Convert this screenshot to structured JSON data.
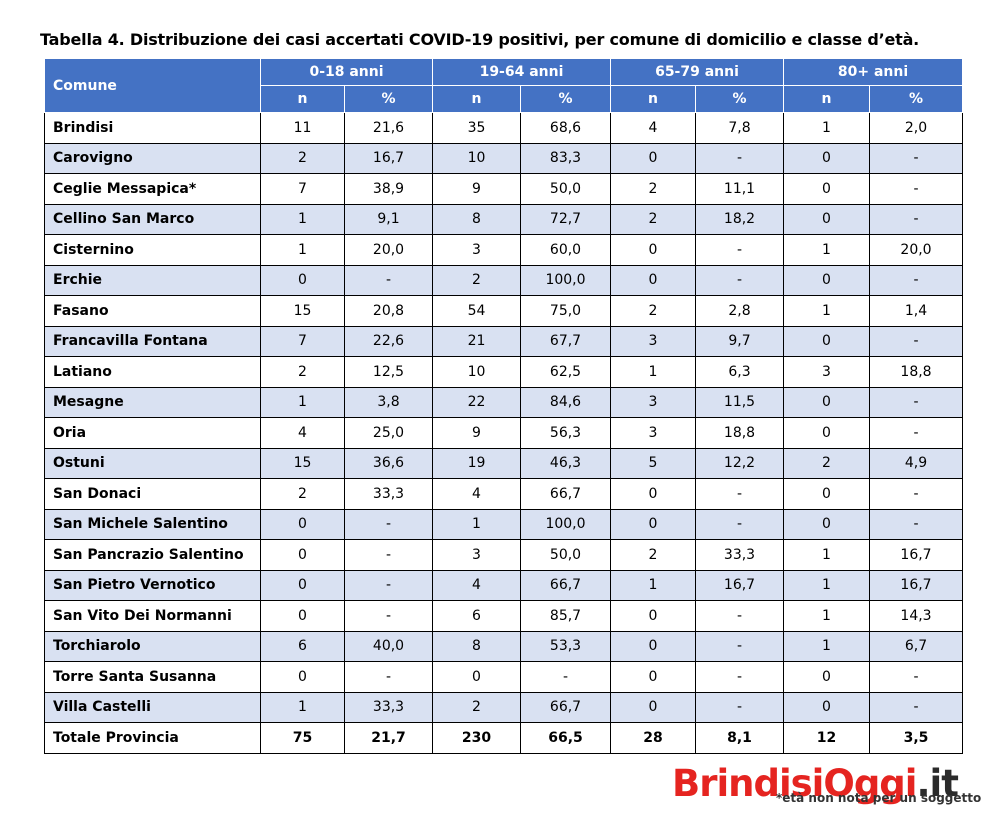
{
  "caption": "Tabella 4. Distribuzione dei casi accertati COVID-19 positivi, per comune di domicilio e classe d’età.",
  "header": {
    "comune": "Comune",
    "groups": [
      "0-18 anni",
      "19-64 anni",
      "65-79 anni",
      "80+ anni"
    ],
    "sub": [
      "n",
      "%",
      "n",
      "%",
      "n",
      "%",
      "n",
      "%"
    ]
  },
  "rows": [
    {
      "name": "Brindisi",
      "values": [
        "11",
        "21,6",
        "35",
        "68,6",
        "4",
        "7,8",
        "1",
        "2,0"
      ]
    },
    {
      "name": "Carovigno",
      "values": [
        "2",
        "16,7",
        "10",
        "83,3",
        "0",
        "-",
        "0",
        "-"
      ]
    },
    {
      "name": "Ceglie Messapica*",
      "values": [
        "7",
        "38,9",
        "9",
        "50,0",
        "2",
        "11,1",
        "0",
        "-"
      ]
    },
    {
      "name": "Cellino San Marco",
      "values": [
        "1",
        "9,1",
        "8",
        "72,7",
        "2",
        "18,2",
        "0",
        "-"
      ]
    },
    {
      "name": "Cisternino",
      "values": [
        "1",
        "20,0",
        "3",
        "60,0",
        "0",
        "-",
        "1",
        "20,0"
      ]
    },
    {
      "name": "Erchie",
      "values": [
        "0",
        "-",
        "2",
        "100,0",
        "0",
        "-",
        "0",
        "-"
      ]
    },
    {
      "name": "Fasano",
      "values": [
        "15",
        "20,8",
        "54",
        "75,0",
        "2",
        "2,8",
        "1",
        "1,4"
      ]
    },
    {
      "name": "Francavilla Fontana",
      "values": [
        "7",
        "22,6",
        "21",
        "67,7",
        "3",
        "9,7",
        "0",
        "-"
      ]
    },
    {
      "name": "Latiano",
      "values": [
        "2",
        "12,5",
        "10",
        "62,5",
        "1",
        "6,3",
        "3",
        "18,8"
      ]
    },
    {
      "name": "Mesagne",
      "values": [
        "1",
        "3,8",
        "22",
        "84,6",
        "3",
        "11,5",
        "0",
        "-"
      ]
    },
    {
      "name": "Oria",
      "values": [
        "4",
        "25,0",
        "9",
        "56,3",
        "3",
        "18,8",
        "0",
        "-"
      ]
    },
    {
      "name": "Ostuni",
      "values": [
        "15",
        "36,6",
        "19",
        "46,3",
        "5",
        "12,2",
        "2",
        "4,9"
      ]
    },
    {
      "name": "San Donaci",
      "values": [
        "2",
        "33,3",
        "4",
        "66,7",
        "0",
        "-",
        "0",
        "-"
      ]
    },
    {
      "name": "San Michele Salentino",
      "values": [
        "0",
        "-",
        "1",
        "100,0",
        "0",
        "-",
        "0",
        "-"
      ]
    },
    {
      "name": "San Pancrazio Salentino",
      "values": [
        "0",
        "-",
        "3",
        "50,0",
        "2",
        "33,3",
        "1",
        "16,7"
      ]
    },
    {
      "name": "San Pietro Vernotico",
      "values": [
        "0",
        "-",
        "4",
        "66,7",
        "1",
        "16,7",
        "1",
        "16,7"
      ]
    },
    {
      "name": "San Vito Dei Normanni",
      "values": [
        "0",
        "-",
        "6",
        "85,7",
        "0",
        "-",
        "1",
        "14,3"
      ]
    },
    {
      "name": "Torchiarolo",
      "values": [
        "6",
        "40,0",
        "8",
        "53,3",
        "0",
        "-",
        "1",
        "6,7"
      ]
    },
    {
      "name": "Torre Santa Susanna",
      "values": [
        "0",
        "-",
        "0",
        "-",
        "0",
        "-",
        "0",
        "-"
      ]
    },
    {
      "name": "Villa Castelli",
      "values": [
        "1",
        "33,3",
        "2",
        "66,7",
        "0",
        "-",
        "0",
        "-"
      ]
    }
  ],
  "total": {
    "name": "Totale Provincia",
    "values": [
      "75",
      "21,7",
      "230",
      "66,5",
      "28",
      "8,1",
      "12",
      "3,5"
    ]
  },
  "footnote": "*età non nota per un soggetto",
  "watermark": {
    "part1": "Brindisi",
    "part2": "Oggi",
    "part3": ".it"
  },
  "colors": {
    "header_bg": "#4472c4",
    "band_bg": "#d9e1f2",
    "watermark_red": "#e52420"
  }
}
